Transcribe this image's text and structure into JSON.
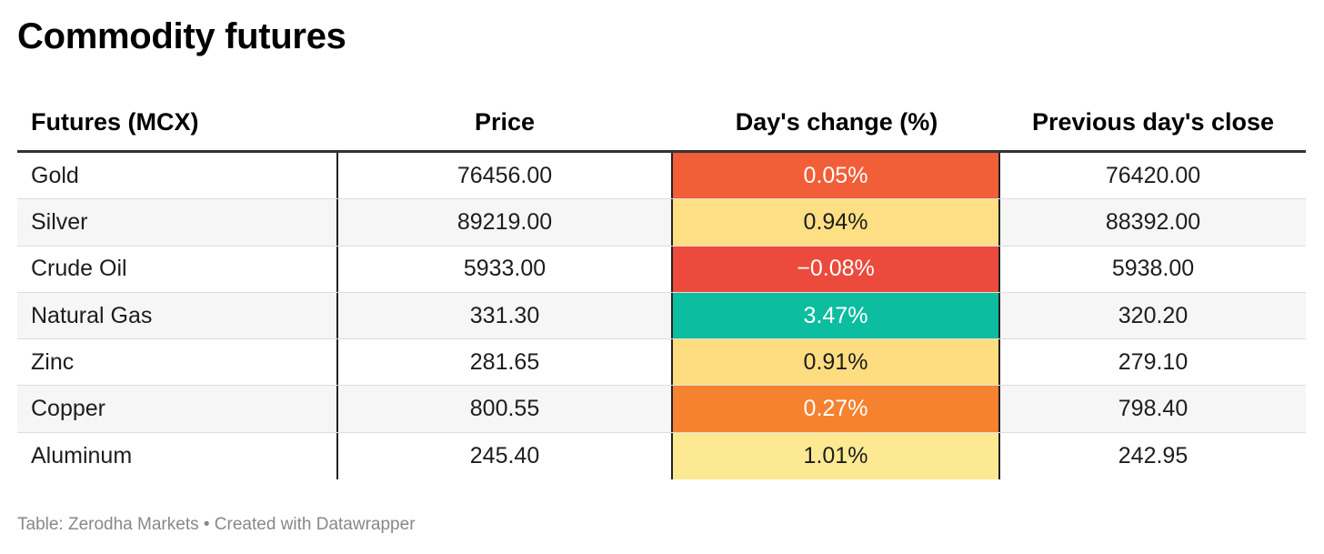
{
  "title": "Commodity futures",
  "source": "Table: Zerodha Markets • Created with Datawrapper",
  "chart_data": {
    "type": "table",
    "title": "Commodity futures",
    "columns": [
      "Futures (MCX)",
      "Price",
      "Day's change (%)",
      "Previous day's close"
    ],
    "rows": [
      {
        "name": "Gold",
        "price": "76456.00",
        "change": "0.05%",
        "change_value": 0.05,
        "prev_close": "76420.00",
        "color": "#f15e37",
        "text_light": true
      },
      {
        "name": "Silver",
        "price": "89219.00",
        "change": "0.94%",
        "change_value": 0.94,
        "prev_close": "88392.00",
        "color": "#fedf84",
        "text_light": false
      },
      {
        "name": "Crude Oil",
        "price": "5933.00",
        "change": "−0.08%",
        "change_value": -0.08,
        "prev_close": "5938.00",
        "color": "#ec4a3c",
        "text_light": true
      },
      {
        "name": "Natural Gas",
        "price": "331.30",
        "change": "3.47%",
        "change_value": 3.47,
        "prev_close": "320.20",
        "color": "#0dbd9f",
        "text_light": true
      },
      {
        "name": "Zinc",
        "price": "281.65",
        "change": "0.91%",
        "change_value": 0.91,
        "prev_close": "279.10",
        "color": "#fedd80",
        "text_light": false
      },
      {
        "name": "Copper",
        "price": "800.55",
        "change": "0.27%",
        "change_value": 0.27,
        "prev_close": "798.40",
        "color": "#f6812f",
        "text_light": true
      },
      {
        "name": "Aluminum",
        "price": "245.40",
        "change": "1.01%",
        "change_value": 1.01,
        "prev_close": "242.95",
        "color": "#fee993",
        "text_light": false
      }
    ]
  }
}
